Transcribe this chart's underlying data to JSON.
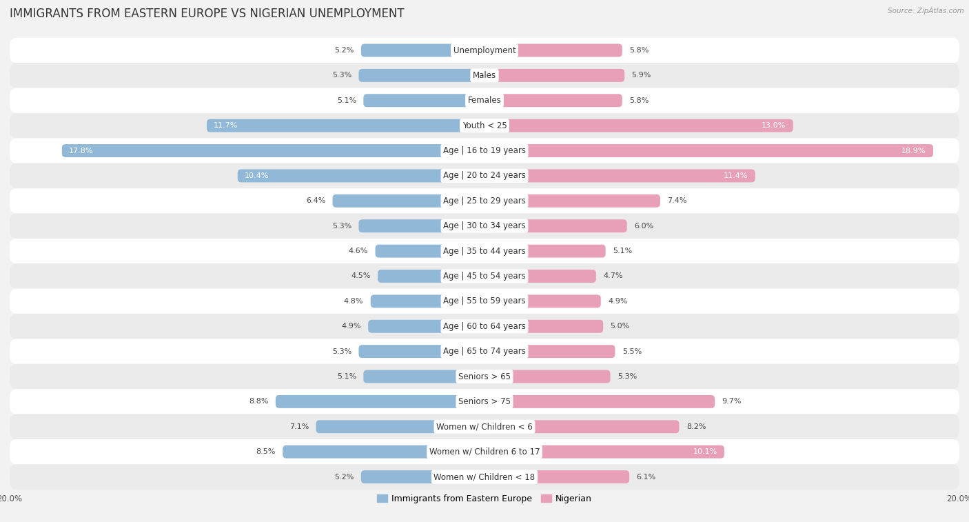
{
  "title": "IMMIGRANTS FROM EASTERN EUROPE VS NIGERIAN UNEMPLOYMENT",
  "source": "Source: ZipAtlas.com",
  "categories": [
    "Unemployment",
    "Males",
    "Females",
    "Youth < 25",
    "Age | 16 to 19 years",
    "Age | 20 to 24 years",
    "Age | 25 to 29 years",
    "Age | 30 to 34 years",
    "Age | 35 to 44 years",
    "Age | 45 to 54 years",
    "Age | 55 to 59 years",
    "Age | 60 to 64 years",
    "Age | 65 to 74 years",
    "Seniors > 65",
    "Seniors > 75",
    "Women w/ Children < 6",
    "Women w/ Children 6 to 17",
    "Women w/ Children < 18"
  ],
  "left_values": [
    5.2,
    5.3,
    5.1,
    11.7,
    17.8,
    10.4,
    6.4,
    5.3,
    4.6,
    4.5,
    4.8,
    4.9,
    5.3,
    5.1,
    8.8,
    7.1,
    8.5,
    5.2
  ],
  "right_values": [
    5.8,
    5.9,
    5.8,
    13.0,
    18.9,
    11.4,
    7.4,
    6.0,
    5.1,
    4.7,
    4.9,
    5.0,
    5.5,
    5.3,
    9.7,
    8.2,
    10.1,
    6.1
  ],
  "left_color": "#92b8d8",
  "right_color": "#e8a0b8",
  "left_label": "Immigrants from Eastern Europe",
  "right_label": "Nigerian",
  "xlim": 20.0,
  "row_colors": [
    "#ffffff",
    "#ebebeb"
  ],
  "title_fontsize": 12,
  "label_fontsize": 8.5,
  "value_fontsize": 8.0,
  "tick_fontsize": 8.5
}
